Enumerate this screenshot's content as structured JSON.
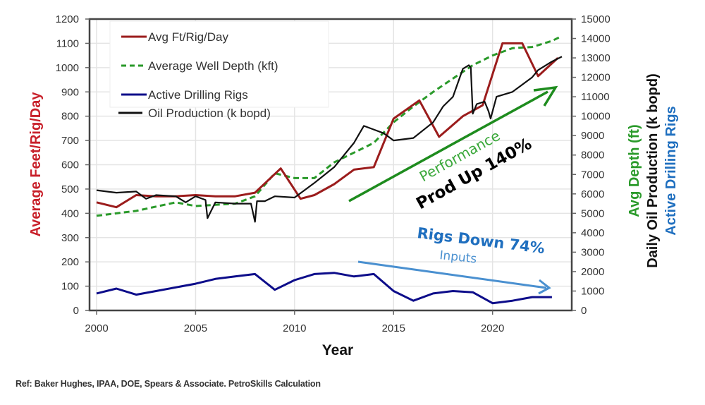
{
  "chart_data": {
    "type": "line",
    "xlabel": "Year",
    "ylabel_left": "Average Feet/Rig/Day",
    "ylabel_right": [
      "Avg Depth (ft)",
      "Daily Oil Production (k bopd)",
      "Active Drilling Rigs"
    ],
    "xlim": [
      2000,
      2023.5
    ],
    "ylim_left": [
      0,
      1200
    ],
    "ylim_right": [
      0,
      15000
    ],
    "x_ticks": [
      "2000",
      "2005",
      "2010",
      "2015",
      "2020"
    ],
    "y_ticks_left": [
      "0",
      "100",
      "200",
      "300",
      "400",
      "500",
      "600",
      "700",
      "800",
      "900",
      "1000",
      "1100",
      "1200"
    ],
    "y_ticks_right": [
      "0",
      "1000",
      "2000",
      "3000",
      "4000",
      "5000",
      "6000",
      "7000",
      "8000",
      "9000",
      "10000",
      "11000",
      "12000",
      "13000",
      "14000",
      "15000"
    ],
    "grid": true,
    "legend_position": "top-left",
    "series": [
      {
        "name": "Avg Ft/Rig/Day",
        "color": "#9b1c1c",
        "style": "solid",
        "x": [
          2000,
          2001,
          2002,
          2003,
          2004,
          2005,
          2006,
          2007,
          2008,
          2009.3,
          2010.3,
          2011,
          2012,
          2013,
          2014,
          2015,
          2016.3,
          2017.3,
          2018.5,
          2019.5,
          2020.5,
          2021.5,
          2022.3,
          2023.3
        ],
        "y": [
          445,
          425,
          475,
          470,
          470,
          475,
          470,
          470,
          485,
          585,
          460,
          475,
          520,
          580,
          590,
          790,
          865,
          715,
          800,
          845,
          1100,
          1100,
          965,
          1040
        ]
      },
      {
        "name": "Average Well Depth (kft)",
        "color": "#2a9a2a",
        "style": "dashed",
        "x": [
          2000,
          2002,
          2004,
          2005,
          2006,
          2007,
          2008,
          2009,
          2010,
          2011,
          2012,
          2013,
          2014,
          2015,
          2016,
          2017,
          2018,
          2019,
          2020,
          2021,
          2022,
          2023,
          2023.5
        ],
        "y": [
          390,
          410,
          445,
          430,
          435,
          440,
          470,
          565,
          545,
          545,
          610,
          650,
          690,
          775,
          840,
          900,
          955,
          1010,
          1050,
          1080,
          1085,
          1110,
          1130
        ]
      },
      {
        "name": "Active Drilling Rigs",
        "color": "#0d0d8a",
        "style": "solid",
        "x": [
          2000,
          2001,
          2002,
          2003,
          2004,
          2005,
          2006,
          2007,
          2008,
          2009,
          2010,
          2011,
          2012,
          2013,
          2014,
          2015,
          2016,
          2017,
          2018,
          2019,
          2020,
          2021,
          2022,
          2023
        ],
        "y": [
          70,
          90,
          65,
          80,
          95,
          110,
          130,
          140,
          150,
          85,
          125,
          150,
          155,
          140,
          150,
          80,
          40,
          70,
          80,
          75,
          30,
          40,
          55,
          55
        ]
      },
      {
        "name": "Oil Production  (k bopd)",
        "color": "#111111",
        "style": "solid",
        "x": [
          2000,
          2001,
          2002,
          2002.5,
          2003,
          2004,
          2004.5,
          2005,
          2005.5,
          2005.6,
          2006,
          2007,
          2007.8,
          2008,
          2008.1,
          2008.5,
          2009,
          2010,
          2010.5,
          2011,
          2012,
          2013,
          2013.5,
          2014,
          2014.5,
          2015,
          2015.5,
          2016,
          2017,
          2017.5,
          2018,
          2018.5,
          2018.8,
          2018.9,
          2019,
          2019.2,
          2019.6,
          2019.8,
          2019.9,
          2020.2,
          2021,
          2022,
          2022.3,
          2023,
          2023.5
        ],
        "y": [
          495,
          485,
          490,
          460,
          475,
          470,
          445,
          470,
          455,
          380,
          445,
          440,
          440,
          365,
          450,
          450,
          470,
          465,
          495,
          525,
          590,
          690,
          760,
          745,
          730,
          700,
          705,
          710,
          775,
          840,
          880,
          995,
          1010,
          1000,
          810,
          850,
          860,
          820,
          790,
          880,
          900,
          960,
          990,
          1025,
          1045
        ]
      }
    ],
    "annotations": [
      {
        "text": "Performance",
        "color": "#3aa83a"
      },
      {
        "text": "Prod Up 140%",
        "color": "#000000"
      },
      {
        "text": "Rigs Down 74%",
        "color": "#1f6fbf"
      },
      {
        "text": "Inputs",
        "color": "#4a90d0"
      }
    ]
  },
  "footer": {
    "reference": "Ref: Baker Hughes, IPAA, DOE, Spears & Associate. PetroSkills Calculation"
  },
  "legend": {
    "items": [
      "Avg Ft/Rig/Day",
      "Average Well Depth (kft)",
      "Active Drilling Rigs",
      "Oil Production  (k bopd)"
    ]
  }
}
